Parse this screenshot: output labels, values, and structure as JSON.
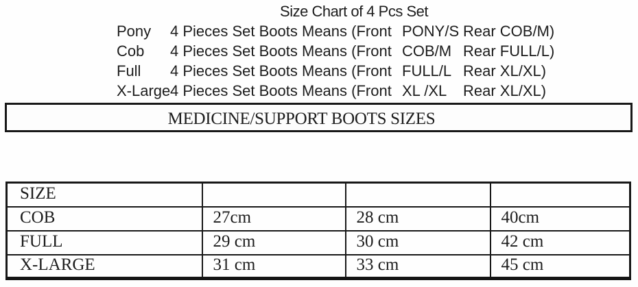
{
  "top": {
    "title": "Size Chart of 4 Pcs Set",
    "rows": [
      {
        "name": "Pony",
        "desc": "4 Pieces Set Boots Means (Front",
        "front": "PONY/S",
        "rear": "Rear COB/M)"
      },
      {
        "name": "Cob",
        "desc": "4 Pieces Set Boots Means (Front",
        "front": "COB/M",
        "rear": "Rear FULL/L)"
      },
      {
        "name": "Full",
        "desc": "4 Pieces Set Boots Means (Front",
        "front": "FULL/L",
        "rear": "Rear XL/XL)"
      },
      {
        "name": "X-Large",
        "desc": "4 Pieces Set Boots Means (Front",
        "front": "XL /XL",
        "rear": "Rear XL/XL)"
      }
    ]
  },
  "banner": {
    "label": "MEDICINE/SUPPORT BOOTS SIZES"
  },
  "size_table": {
    "header": [
      "SIZE",
      "",
      "",
      ""
    ],
    "rows": [
      [
        "COB",
        "27cm",
        "28 cm",
        "40cm"
      ],
      [
        "FULL",
        "29 cm",
        "30 cm",
        "42 cm"
      ],
      [
        "X-LARGE",
        "31 cm",
        "33 cm",
        "45 cm"
      ]
    ]
  },
  "colors": {
    "text": "#1c1c1c",
    "border": "#181818",
    "background": "#fefefe"
  }
}
